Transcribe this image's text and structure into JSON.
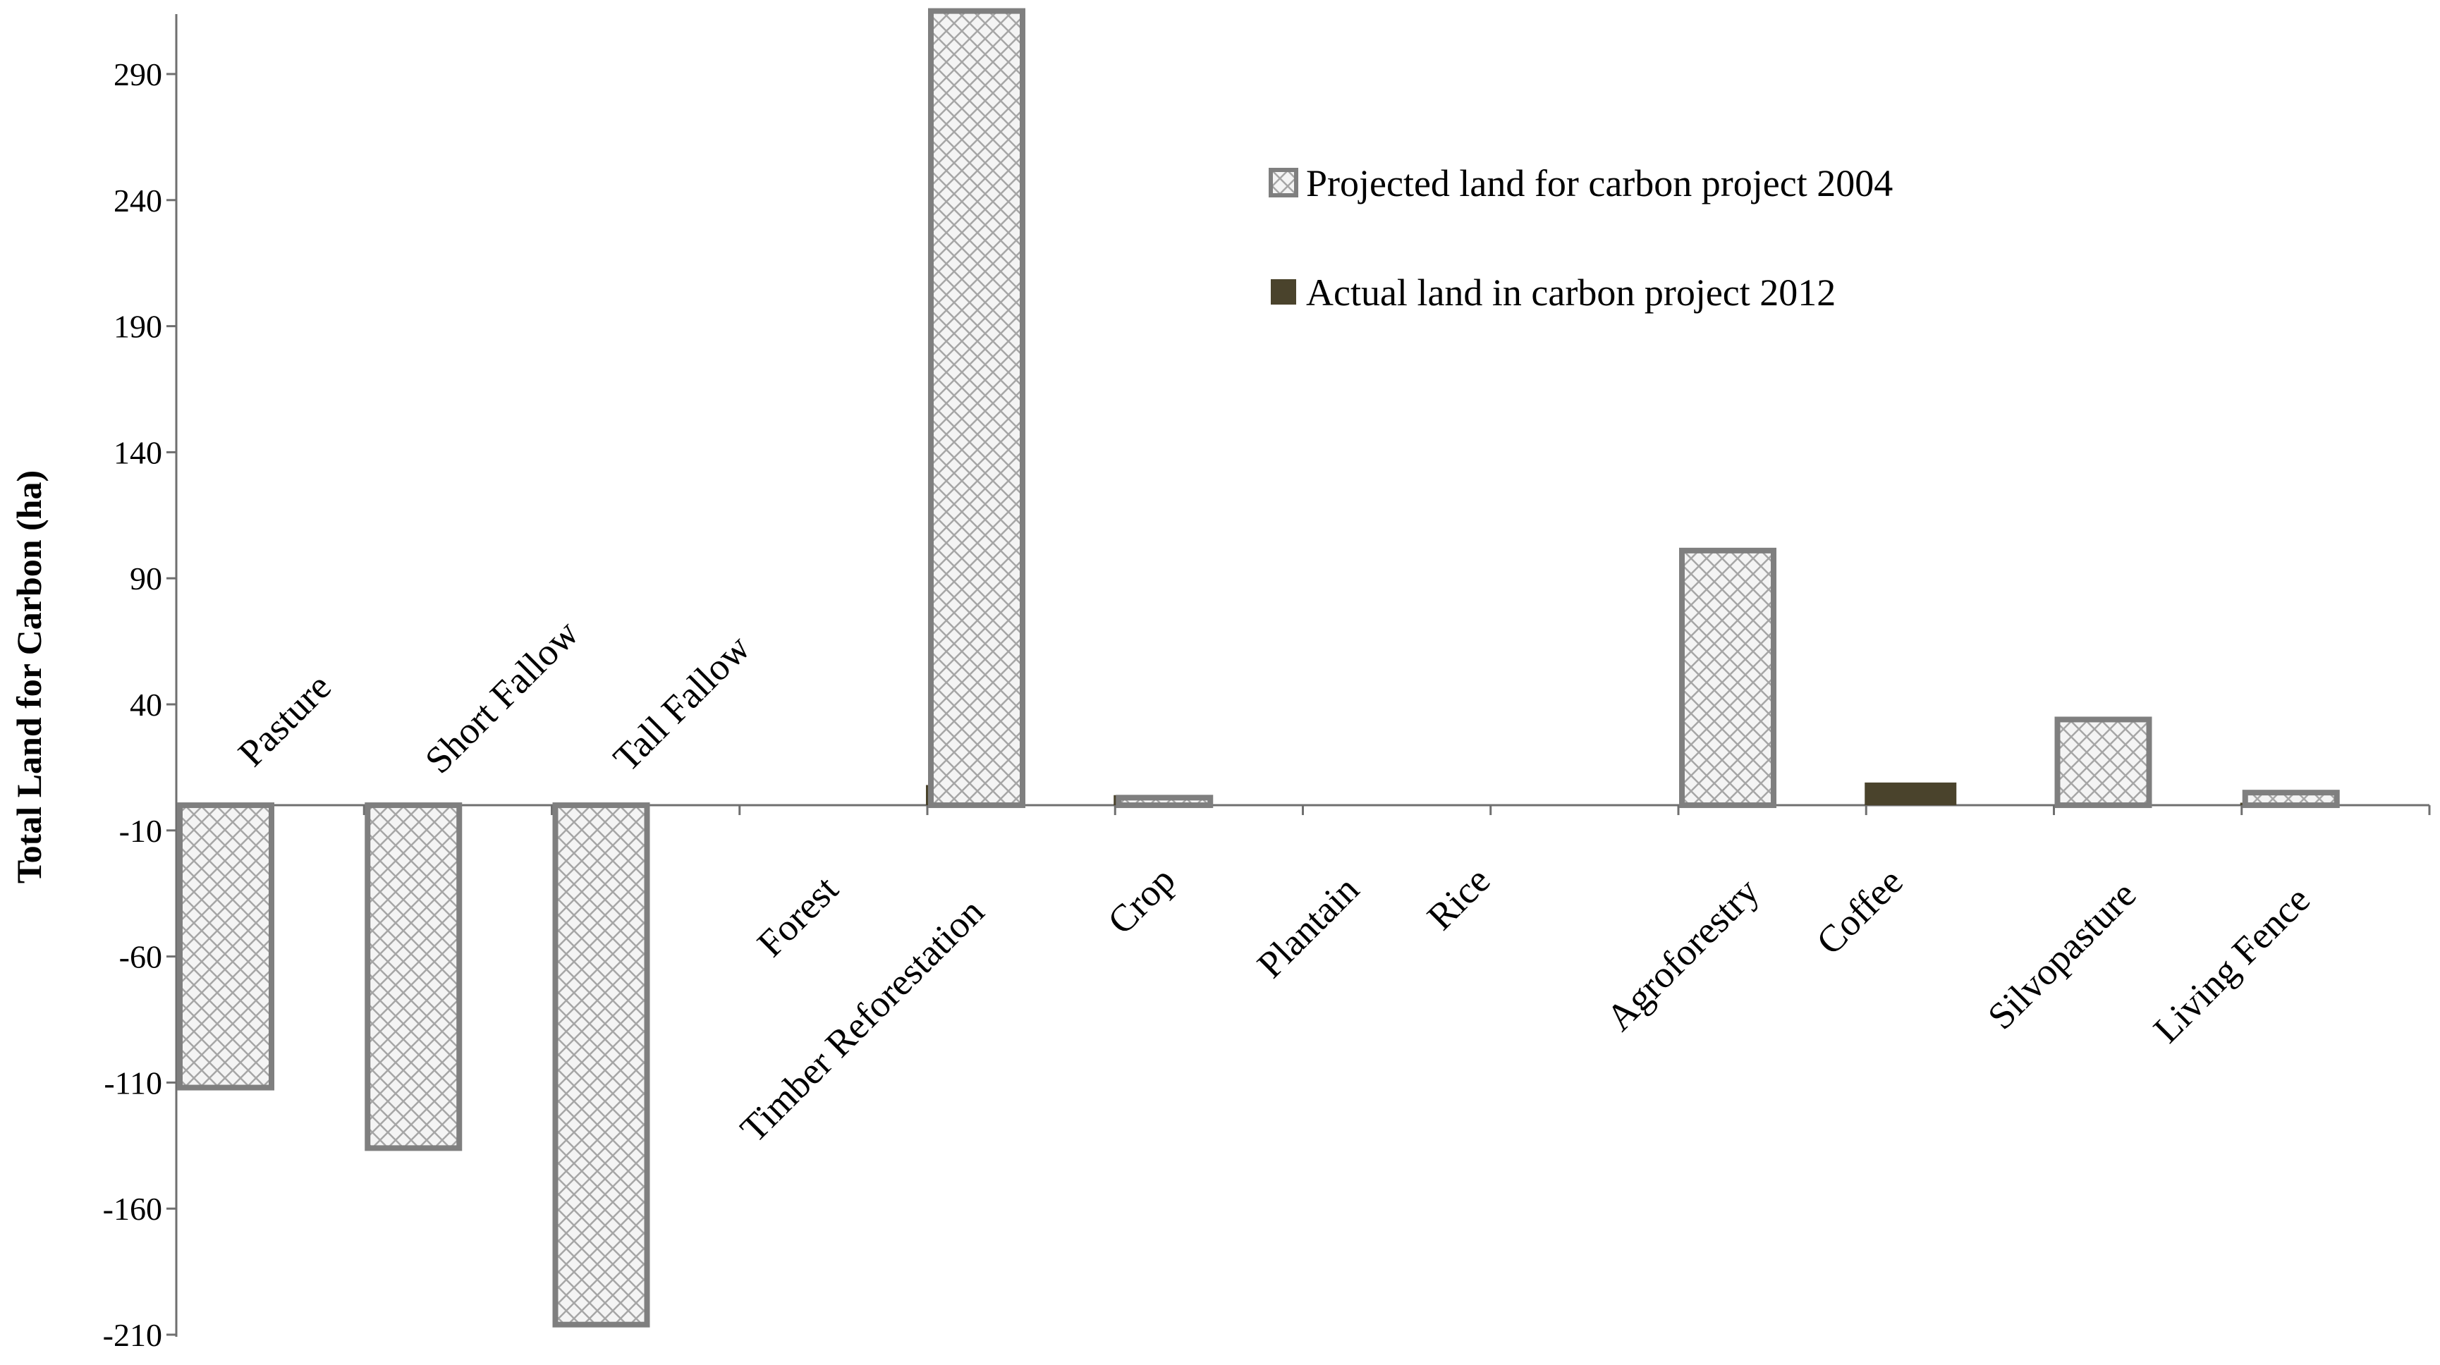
{
  "chart_data": {
    "type": "bar",
    "title": "",
    "ylabel": "Total Land for Carbon (ha)",
    "xlabel": "",
    "ylim": [
      -210,
      315
    ],
    "yticks": [
      290,
      240,
      190,
      140,
      90,
      40,
      -10,
      -60,
      -110,
      -160,
      -210
    ],
    "categories": [
      "Pasture",
      "Short Fallow",
      "Tall Fallow",
      "Forest",
      "Timber Reforestation",
      "Crop",
      "Plantain",
      "Rice",
      "Agroforestry",
      "Coffee",
      "Silvopasture",
      "Living Fence"
    ],
    "series": [
      {
        "name": "Projected land for carbon project 2004",
        "color": "#7f7f7f",
        "pattern": "crosshatch",
        "values": [
          -112,
          -136,
          -206,
          0,
          315,
          3,
          0,
          0,
          101,
          0,
          34,
          5
        ]
      },
      {
        "name": "Actual land in carbon project 2012",
        "color": "#4a432c",
        "pattern": "solid",
        "values": [
          0,
          0,
          0,
          8,
          4,
          0,
          0,
          0,
          9,
          0,
          1,
          0
        ]
      }
    ],
    "grid": false,
    "legend_position": "top-right"
  }
}
